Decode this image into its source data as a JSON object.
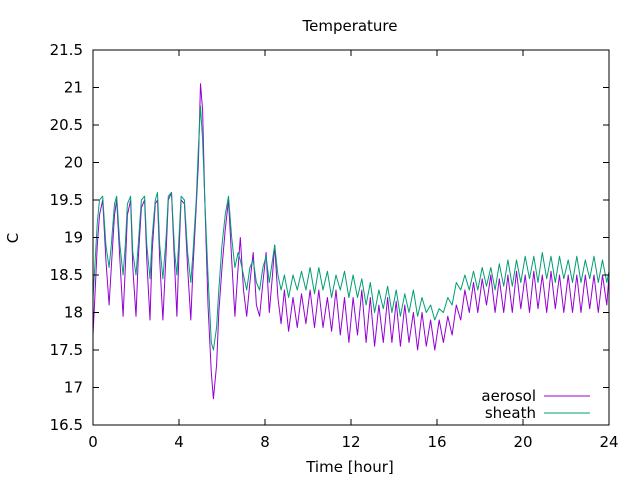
{
  "chart_data": {
    "type": "line",
    "title": "Temperature",
    "xlabel": "Time [hour]",
    "ylabel": "C",
    "xlim": [
      0,
      24
    ],
    "ylim": [
      16.5,
      21.5
    ],
    "x_ticks": [
      0,
      4,
      8,
      12,
      16,
      20,
      24
    ],
    "x_tick_labels": [
      "0",
      "4",
      "8",
      "12",
      "16",
      "20",
      "24"
    ],
    "y_ticks": [
      16.5,
      17,
      17.5,
      18,
      18.5,
      19,
      19.5,
      20,
      20.5,
      21,
      21.5
    ],
    "y_tick_labels": [
      "16.5",
      "17",
      "17.5",
      "18",
      "18.5",
      "19",
      "19.5",
      "20",
      "20.5",
      "21",
      "21.5"
    ],
    "grid": false,
    "legend_position": "bottom-right",
    "series": [
      {
        "name": "aerosol",
        "color": "#9400d3",
        "x": [
          0.0,
          0.1,
          0.2,
          0.3,
          0.45,
          0.6,
          0.75,
          0.85,
          1.0,
          1.1,
          1.25,
          1.4,
          1.5,
          1.6,
          1.75,
          1.85,
          2.0,
          2.1,
          2.25,
          2.4,
          2.5,
          2.65,
          2.75,
          2.9,
          3.0,
          3.1,
          3.25,
          3.4,
          3.5,
          3.65,
          3.8,
          3.9,
          4.0,
          4.1,
          4.25,
          4.4,
          4.55,
          4.65,
          4.8,
          4.9,
          5.0,
          5.1,
          5.2,
          5.35,
          5.5,
          5.6,
          5.75,
          5.85,
          6.0,
          6.15,
          6.3,
          6.45,
          6.6,
          6.75,
          6.85,
          7.0,
          7.15,
          7.3,
          7.45,
          7.6,
          7.75,
          7.9,
          8.05,
          8.2,
          8.35,
          8.45,
          8.6,
          8.75,
          8.9,
          9.1,
          9.3,
          9.5,
          9.7,
          9.9,
          10.1,
          10.3,
          10.5,
          10.7,
          10.9,
          11.1,
          11.3,
          11.5,
          11.7,
          11.9,
          12.1,
          12.3,
          12.5,
          12.7,
          12.9,
          13.1,
          13.3,
          13.5,
          13.7,
          13.9,
          14.1,
          14.3,
          14.5,
          14.7,
          14.9,
          15.1,
          15.3,
          15.5,
          15.7,
          15.9,
          16.1,
          16.3,
          16.5,
          16.7,
          16.9,
          17.1,
          17.3,
          17.5,
          17.7,
          17.9,
          18.1,
          18.3,
          18.5,
          18.7,
          18.9,
          19.1,
          19.3,
          19.5,
          19.7,
          19.9,
          20.1,
          20.3,
          20.5,
          20.7,
          20.9,
          21.1,
          21.3,
          21.5,
          21.7,
          21.9,
          22.1,
          22.3,
          22.5,
          22.7,
          22.9,
          23.1,
          23.3,
          23.5,
          23.7,
          23.9,
          24.0
        ],
        "y": [
          17.7,
          18.3,
          18.9,
          19.3,
          19.5,
          18.7,
          18.1,
          18.6,
          19.3,
          19.5,
          18.7,
          17.95,
          18.6,
          19.3,
          19.5,
          18.6,
          17.95,
          18.7,
          19.4,
          19.5,
          18.7,
          17.9,
          18.8,
          19.45,
          19.5,
          18.7,
          17.9,
          18.8,
          19.5,
          19.6,
          18.6,
          17.95,
          18.8,
          19.5,
          19.45,
          18.6,
          17.9,
          18.6,
          19.4,
          20.0,
          21.05,
          20.7,
          19.5,
          18.1,
          17.2,
          16.85,
          17.3,
          18.0,
          18.6,
          19.1,
          19.5,
          18.7,
          17.95,
          18.6,
          19.0,
          18.3,
          17.95,
          18.4,
          18.8,
          18.1,
          17.95,
          18.4,
          18.8,
          18.0,
          18.5,
          18.9,
          18.2,
          17.85,
          18.3,
          17.75,
          18.2,
          17.8,
          18.25,
          17.85,
          18.3,
          17.8,
          18.3,
          17.8,
          18.2,
          17.75,
          18.3,
          17.7,
          18.2,
          17.6,
          18.2,
          17.7,
          18.3,
          17.6,
          18.2,
          17.55,
          18.1,
          17.6,
          18.2,
          17.6,
          18.15,
          17.55,
          18.1,
          17.6,
          18.0,
          17.5,
          18.0,
          17.55,
          17.9,
          17.5,
          17.9,
          17.6,
          17.95,
          17.7,
          18.1,
          17.9,
          18.3,
          18.0,
          18.4,
          18.0,
          18.45,
          18.1,
          18.5,
          18.0,
          18.45,
          18.0,
          18.5,
          18.0,
          18.55,
          18.05,
          18.5,
          18.0,
          18.55,
          18.05,
          18.5,
          18.0,
          18.55,
          18.05,
          18.5,
          18.0,
          18.5,
          18.0,
          18.5,
          18.0,
          18.5,
          18.05,
          18.5,
          18.0,
          18.5,
          18.1,
          18.5
        ]
      },
      {
        "name": "sheath",
        "color": "#009e73",
        "x": [
          0.0,
          0.1,
          0.2,
          0.3,
          0.45,
          0.6,
          0.75,
          0.85,
          1.0,
          1.1,
          1.25,
          1.4,
          1.5,
          1.6,
          1.75,
          1.85,
          2.0,
          2.1,
          2.25,
          2.4,
          2.5,
          2.65,
          2.75,
          2.9,
          3.0,
          3.1,
          3.25,
          3.4,
          3.5,
          3.65,
          3.8,
          3.9,
          4.0,
          4.1,
          4.25,
          4.4,
          4.55,
          4.65,
          4.8,
          4.9,
          5.0,
          5.1,
          5.2,
          5.35,
          5.5,
          5.6,
          5.75,
          5.85,
          6.0,
          6.15,
          6.3,
          6.45,
          6.6,
          6.75,
          6.85,
          7.0,
          7.15,
          7.3,
          7.45,
          7.6,
          7.75,
          7.9,
          8.05,
          8.2,
          8.35,
          8.45,
          8.6,
          8.75,
          8.9,
          9.1,
          9.3,
          9.5,
          9.7,
          9.9,
          10.1,
          10.3,
          10.5,
          10.7,
          10.9,
          11.1,
          11.3,
          11.5,
          11.7,
          11.9,
          12.1,
          12.3,
          12.5,
          12.7,
          12.9,
          13.1,
          13.3,
          13.5,
          13.7,
          13.9,
          14.1,
          14.3,
          14.5,
          14.7,
          14.9,
          15.1,
          15.3,
          15.5,
          15.7,
          15.9,
          16.1,
          16.3,
          16.5,
          16.7,
          16.9,
          17.1,
          17.3,
          17.5,
          17.7,
          17.9,
          18.1,
          18.3,
          18.5,
          18.7,
          18.9,
          19.1,
          19.3,
          19.5,
          19.7,
          19.9,
          20.1,
          20.3,
          20.5,
          20.7,
          20.9,
          21.1,
          21.3,
          21.5,
          21.7,
          21.9,
          22.1,
          22.3,
          22.5,
          22.7,
          22.9,
          23.1,
          23.3,
          23.5,
          23.7,
          23.9,
          24.0
        ],
        "y": [
          18.2,
          18.7,
          19.2,
          19.5,
          19.55,
          18.9,
          18.6,
          18.9,
          19.45,
          19.55,
          18.9,
          18.5,
          18.9,
          19.45,
          19.55,
          18.8,
          18.5,
          18.9,
          19.5,
          19.55,
          18.9,
          18.45,
          19.0,
          19.5,
          19.6,
          18.9,
          18.45,
          19.0,
          19.55,
          19.6,
          18.8,
          18.5,
          19.0,
          19.55,
          19.5,
          18.8,
          18.4,
          18.8,
          19.5,
          20.2,
          20.75,
          20.3,
          19.5,
          18.5,
          17.6,
          17.5,
          17.8,
          18.3,
          18.9,
          19.3,
          19.55,
          19.0,
          18.6,
          18.8,
          18.7,
          18.5,
          18.3,
          18.6,
          18.7,
          18.4,
          18.3,
          18.6,
          18.75,
          18.4,
          18.7,
          18.9,
          18.5,
          18.3,
          18.5,
          18.2,
          18.5,
          18.3,
          18.55,
          18.3,
          18.6,
          18.25,
          18.6,
          18.3,
          18.55,
          18.2,
          18.5,
          18.3,
          18.55,
          18.2,
          18.5,
          18.2,
          18.45,
          18.1,
          18.4,
          18.0,
          18.3,
          18.05,
          18.35,
          18.0,
          18.3,
          17.95,
          18.25,
          18.0,
          18.3,
          17.95,
          18.2,
          18.0,
          18.1,
          17.9,
          18.05,
          18.0,
          18.2,
          18.1,
          18.4,
          18.3,
          18.5,
          18.3,
          18.55,
          18.3,
          18.6,
          18.35,
          18.6,
          18.3,
          18.65,
          18.35,
          18.7,
          18.35,
          18.7,
          18.4,
          18.75,
          18.45,
          18.75,
          18.4,
          18.8,
          18.45,
          18.75,
          18.4,
          18.75,
          18.45,
          18.7,
          18.4,
          18.75,
          18.4,
          18.7,
          18.45,
          18.75,
          18.4,
          18.7,
          18.4,
          18.55
        ]
      }
    ]
  }
}
